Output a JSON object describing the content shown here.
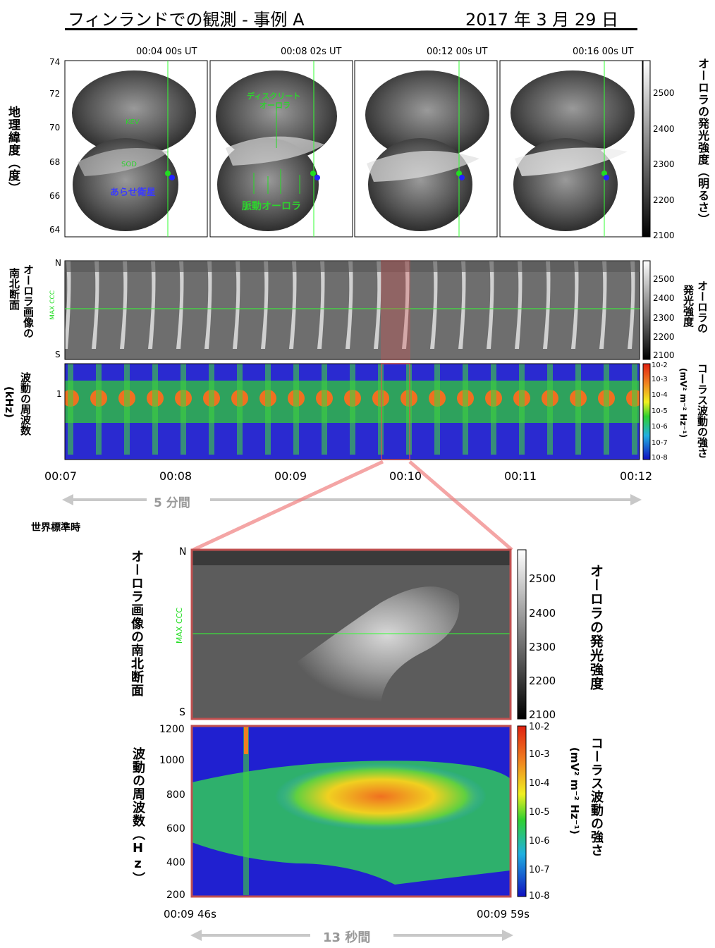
{
  "header": {
    "title": "フィンランドでの観測 - 事例 A",
    "date": "2017 年 3 月 29 日"
  },
  "panel_a": {
    "ylabel": "地理緯度（度）",
    "yticks": [
      "74",
      "72",
      "70",
      "68",
      "66",
      "64"
    ],
    "times": [
      "00:04 00s UT",
      "00:08 02s UT",
      "00:12 00s UT",
      "00:16 00s UT"
    ],
    "labels": {
      "kev": "KEV",
      "sod": "SOD",
      "arase": "あらせ衛星",
      "discrete_line1": "ディスクリート",
      "discrete_line2": "オーロラ",
      "pulsating": "脈動オーロラ"
    },
    "colorbar_ticks": [
      "2500",
      "2400",
      "2300",
      "2200",
      "2100"
    ],
    "colorbar_label": "オーロラの発光強度（明るさ）"
  },
  "panel_b": {
    "ylabel_line1": "オーロラ画像の",
    "ylabel_line2": "南北断面",
    "n_label": "N",
    "s_label": "S",
    "maxccc": "MAX CCC",
    "colorbar_ticks": [
      "2500",
      "2400",
      "2300",
      "2200",
      "2100"
    ],
    "colorbar_label_line1": "オーロラの",
    "colorbar_label_line2": "発光強度"
  },
  "panel_c": {
    "ylabel_line1": "波動の周波数",
    "ylabel_line2": "(kHz)",
    "ytick": "1",
    "colorbar_ticks": [
      "10-2",
      "10-3",
      "10-4",
      "10-5",
      "10-6",
      "10-7",
      "10-8"
    ],
    "colorbar_label_line1": "コーラス波動の強さ",
    "colorbar_label_line2": "(mV² m⁻² Hz⁻¹)",
    "xticks": [
      "00:07",
      "00:08",
      "00:09",
      "00:10",
      "00:11",
      "00:12"
    ],
    "span_label": "5 分間",
    "xaxis_label": "世界標準時"
  },
  "zoom": {
    "ylabel_top": "オーロラ画像の南北断面",
    "n_label": "N",
    "s_label": "S",
    "maxccc": "MAX CCC",
    "colorbar_top_ticks": [
      "2500",
      "2400",
      "2300",
      "2200",
      "2100"
    ],
    "colorbar_top_label": "オーロラの発光強度",
    "ylabel_bottom": "波動の周波数（Hz）",
    "yticks": [
      "1200",
      "1000",
      "800",
      "600",
      "400",
      "200"
    ],
    "colorbar_bottom_ticks": [
      "10-2",
      "10-3",
      "10-4",
      "10-5",
      "10-6",
      "10-7",
      "10-8"
    ],
    "colorbar_bottom_label_line1": "コーラス波動の強さ",
    "colorbar_bottom_label_line2": "(mV² m⁻² Hz⁻¹)",
    "x_start": "00:09 46s",
    "x_end": "00:09 59s",
    "span_label": "13 秒間"
  }
}
